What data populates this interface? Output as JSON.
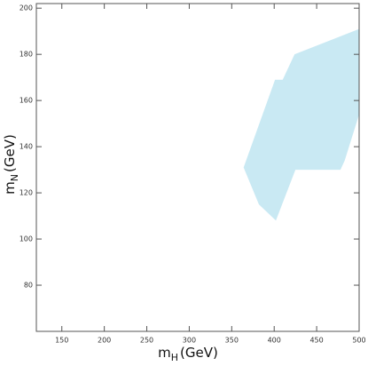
{
  "chart_data": {
    "type": "region",
    "xlabel_main": "m",
    "xlabel_sub": "H",
    "xlabel_unit": "(GeV)",
    "ylabel_main": "m",
    "ylabel_sub": "N",
    "ylabel_unit": "(GeV)",
    "x": [
      364,
      401,
      410,
      424,
      500,
      500,
      483,
      478,
      425,
      402,
      382
    ],
    "values": [
      131,
      169,
      169,
      180,
      191,
      154,
      134,
      130,
      130,
      108,
      115
    ],
    "color": "#c9e9f3",
    "xlim": [
      120,
      500
    ],
    "xticks": [
      150,
      200,
      250,
      300,
      350,
      400,
      450,
      500
    ],
    "ylim": [
      60,
      202
    ],
    "yticks": [
      80,
      100,
      120,
      140,
      160,
      180,
      200
    ],
    "grid": false
  }
}
